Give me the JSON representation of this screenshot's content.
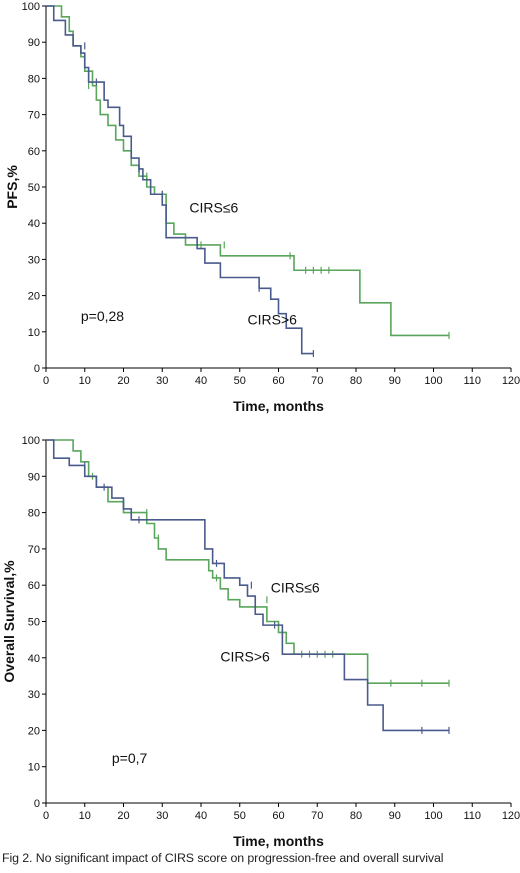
{
  "caption": "Fig 2. No significant impact of CIRS score on progression-free and overall survival",
  "colors": {
    "CIRS≤6": "#5aa55c",
    "CIRS>6": "#4a5a8c"
  },
  "chart_data": [
    {
      "type": "line",
      "step": true,
      "xlabel": "Time, months",
      "ylabel": "PFS,%",
      "xlim": [
        0,
        120
      ],
      "ylim": [
        0,
        100
      ],
      "xticks": [
        0,
        10,
        20,
        30,
        40,
        50,
        60,
        70,
        80,
        90,
        100,
        110,
        120
      ],
      "yticks": [
        0,
        10,
        20,
        30,
        40,
        50,
        60,
        70,
        80,
        90,
        100
      ],
      "annotations": [
        {
          "text": "CIRS≤6",
          "x": 37,
          "y": 43
        },
        {
          "text": "CIRS>6",
          "x": 52,
          "y": 12
        },
        {
          "text": "p=0,28",
          "x": 9,
          "y": 13
        }
      ],
      "series": [
        {
          "name": "CIRS≤6",
          "color": "#5aa55c",
          "x": [
            0,
            4,
            6,
            7,
            9,
            10,
            12,
            13,
            14,
            16,
            18,
            20,
            22,
            24,
            26,
            28,
            31,
            33,
            36,
            45,
            64,
            81,
            89,
            104
          ],
          "y": [
            100,
            97,
            93,
            89,
            86,
            82,
            78,
            74,
            70,
            67,
            63,
            60,
            56,
            53,
            50,
            48,
            40,
            37,
            34,
            31,
            27,
            18,
            9,
            9
          ],
          "censored": [
            {
              "x": 11,
              "y": 78
            },
            {
              "x": 26,
              "y": 53
            },
            {
              "x": 30,
              "y": 48
            },
            {
              "x": 40,
              "y": 34
            },
            {
              "x": 46,
              "y": 34
            },
            {
              "x": 63,
              "y": 31
            },
            {
              "x": 67,
              "y": 27
            },
            {
              "x": 69,
              "y": 27
            },
            {
              "x": 71,
              "y": 27
            },
            {
              "x": 73,
              "y": 27
            },
            {
              "x": 104,
              "y": 9
            }
          ]
        },
        {
          "name": "CIRS>6",
          "color": "#4a5a8c",
          "x": [
            0,
            2,
            5,
            7,
            9,
            10,
            11,
            15,
            16,
            19,
            20,
            22,
            24,
            25,
            27,
            30,
            31,
            39,
            41,
            45,
            55,
            58,
            60,
            62,
            66,
            69
          ],
          "y": [
            100,
            96,
            92,
            89,
            87,
            83,
            79,
            74,
            72,
            67,
            64,
            58,
            55,
            52,
            48,
            45,
            36,
            33,
            29,
            25,
            22,
            19,
            15,
            11,
            4,
            4
          ],
          "censored": [
            {
              "x": 10,
              "y": 89
            },
            {
              "x": 13,
              "y": 79
            },
            {
              "x": 15,
              "y": 76
            },
            {
              "x": 24,
              "y": 55
            },
            {
              "x": 30,
              "y": 48
            },
            {
              "x": 55,
              "y": 22
            },
            {
              "x": 69,
              "y": 4
            }
          ]
        }
      ]
    },
    {
      "type": "line",
      "step": true,
      "xlabel": "Time, months",
      "ylabel": "Overall Survival,%",
      "xlim": [
        0,
        120
      ],
      "ylim": [
        0,
        100
      ],
      "xticks": [
        0,
        10,
        20,
        30,
        40,
        50,
        60,
        70,
        80,
        90,
        100,
        110,
        120
      ],
      "yticks": [
        0,
        10,
        20,
        30,
        40,
        50,
        60,
        70,
        80,
        90,
        100
      ],
      "annotations": [
        {
          "text": "CIRS≤6",
          "x": 58,
          "y": 58
        },
        {
          "text": "CIRS>6",
          "x": 45,
          "y": 39
        },
        {
          "text": "p=0,7",
          "x": 17,
          "y": 11
        }
      ],
      "series": [
        {
          "name": "CIRS≤6",
          "color": "#5aa55c",
          "x": [
            0,
            7,
            9,
            11,
            13,
            16,
            20,
            26,
            28,
            29,
            31,
            38,
            42,
            43,
            45,
            47,
            50,
            54,
            57,
            60,
            62,
            64,
            83,
            104
          ],
          "y": [
            100,
            97,
            94,
            90,
            87,
            83,
            80,
            77,
            73,
            70,
            67,
            67,
            64,
            62,
            59,
            56,
            54,
            54,
            50,
            47,
            44,
            41,
            33,
            33
          ],
          "censored": [
            {
              "x": 12,
              "y": 90
            },
            {
              "x": 26,
              "y": 80
            },
            {
              "x": 29,
              "y": 73
            },
            {
              "x": 44,
              "y": 62
            },
            {
              "x": 57,
              "y": 56
            },
            {
              "x": 61,
              "y": 47
            },
            {
              "x": 66,
              "y": 41
            },
            {
              "x": 68,
              "y": 41
            },
            {
              "x": 70,
              "y": 41
            },
            {
              "x": 72,
              "y": 41
            },
            {
              "x": 74,
              "y": 41
            },
            {
              "x": 89,
              "y": 33
            },
            {
              "x": 97,
              "y": 33
            },
            {
              "x": 104,
              "y": 33
            }
          ]
        },
        {
          "name": "CIRS>6",
          "color": "#4a5a8c",
          "x": [
            0,
            2,
            6,
            10,
            13,
            17,
            20,
            22,
            40,
            41,
            43,
            46,
            50,
            52,
            54,
            56,
            61,
            77,
            83,
            87,
            104
          ],
          "y": [
            100,
            95,
            93,
            90,
            87,
            84,
            81,
            78,
            78,
            70,
            66,
            62,
            60,
            57,
            52,
            49,
            41,
            34,
            27,
            20,
            20
          ],
          "censored": [
            {
              "x": 10,
              "y": 93
            },
            {
              "x": 15,
              "y": 87
            },
            {
              "x": 24,
              "y": 78
            },
            {
              "x": 44,
              "y": 66
            },
            {
              "x": 53,
              "y": 60
            },
            {
              "x": 59,
              "y": 49
            },
            {
              "x": 97,
              "y": 20
            },
            {
              "x": 104,
              "y": 20
            }
          ]
        }
      ]
    }
  ]
}
